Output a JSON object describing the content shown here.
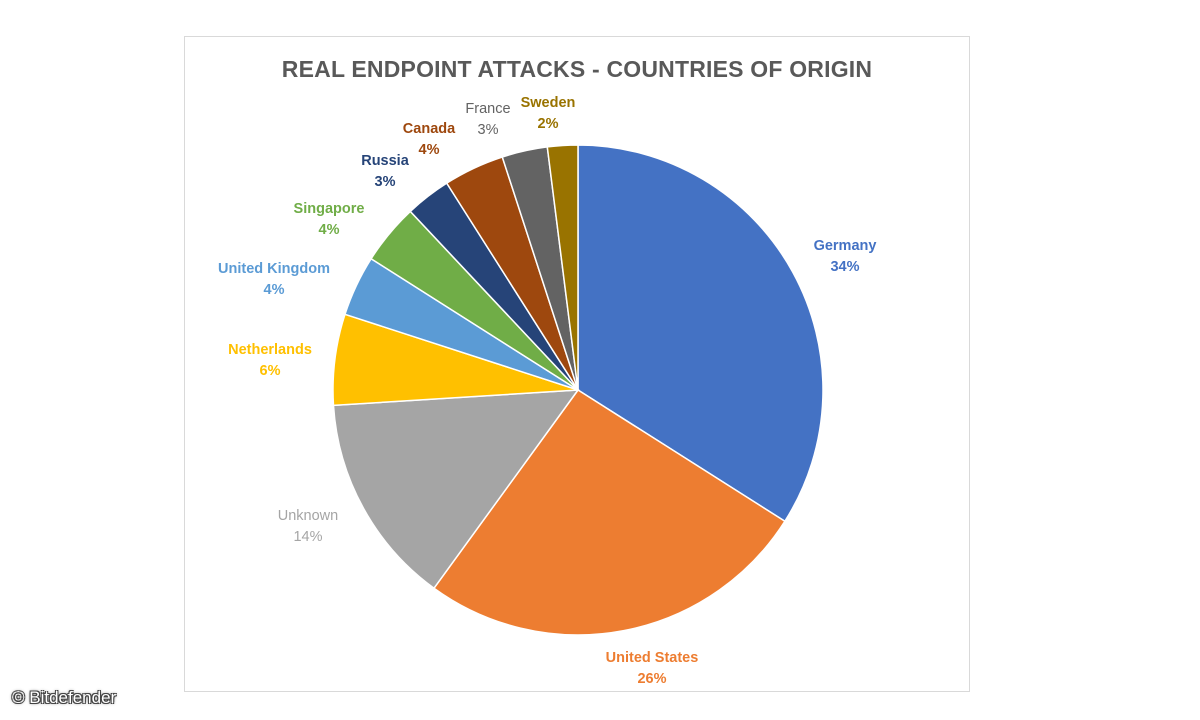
{
  "chart_data": {
    "type": "pie",
    "title": "REAL ENDPOINT ATTACKS - COUNTRIES OF ORIGIN",
    "slices": [
      {
        "label": "Germany",
        "value": 34,
        "value_label": "34%",
        "color": "#4472C4",
        "label_color": "#4472C4",
        "label_bold": true
      },
      {
        "label": "United States",
        "value": 26,
        "value_label": "26%",
        "color": "#ED7D31",
        "label_color": "#ED7D31",
        "label_bold": true
      },
      {
        "label": "Unknown",
        "value": 14,
        "value_label": "14%",
        "color": "#A5A5A5",
        "label_color": "#A5A5A5",
        "label_bold": false
      },
      {
        "label": "Netherlands",
        "value": 6,
        "value_label": "6%",
        "color": "#FFC000",
        "label_color": "#FFC000",
        "label_bold": true
      },
      {
        "label": "United Kingdom",
        "value": 4,
        "value_label": "4%",
        "color": "#5B9BD5",
        "label_color": "#5B9BD5",
        "label_bold": true
      },
      {
        "label": "Singapore",
        "value": 4,
        "value_label": "4%",
        "color": "#70AD47",
        "label_color": "#70AD47",
        "label_bold": true
      },
      {
        "label": "Russia",
        "value": 3,
        "value_label": "3%",
        "color": "#264478",
        "label_color": "#264478",
        "label_bold": true
      },
      {
        "label": "Canada",
        "value": 4,
        "value_label": "4%",
        "color": "#9E480E",
        "label_color": "#9E480E",
        "label_bold": true
      },
      {
        "label": "France",
        "value": 3,
        "value_label": "3%",
        "color": "#636363",
        "label_color": "#636363",
        "label_bold": false
      },
      {
        "label": "Sweden",
        "value": 2,
        "value_label": "2%",
        "color": "#997300",
        "label_color": "#997300",
        "label_bold": true
      }
    ]
  },
  "credit": "© Bitdefender"
}
